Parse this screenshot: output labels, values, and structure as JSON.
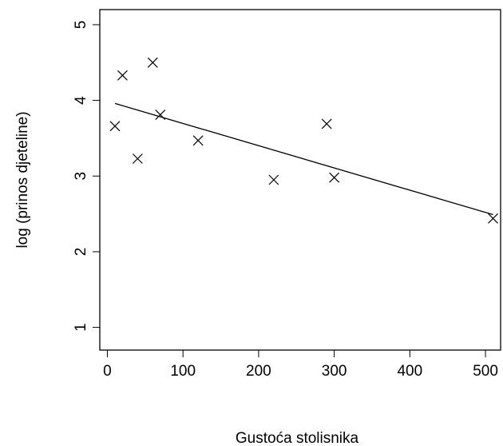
{
  "chart_data": {
    "type": "scatter",
    "title": "",
    "xlabel": "Gustoća stolisnika",
    "ylabel": "log (prinos djeteline)",
    "xlim": [
      -10,
      520
    ],
    "ylim": [
      0.7,
      5.2
    ],
    "xticks": [
      0,
      100,
      200,
      300,
      400,
      500
    ],
    "yticks": [
      1,
      2,
      3,
      4,
      5
    ],
    "grid": false,
    "legend": "none",
    "marker": "x",
    "points": [
      {
        "x": 10,
        "y": 3.66
      },
      {
        "x": 20,
        "y": 4.33
      },
      {
        "x": 40,
        "y": 3.23
      },
      {
        "x": 60,
        "y": 4.5
      },
      {
        "x": 70,
        "y": 3.81
      },
      {
        "x": 120,
        "y": 3.47
      },
      {
        "x": 220,
        "y": 2.95
      },
      {
        "x": 290,
        "y": 3.69
      },
      {
        "x": 300,
        "y": 2.98
      },
      {
        "x": 510,
        "y": 2.44
      }
    ],
    "fit_line": {
      "x": [
        10,
        510
      ],
      "y": [
        3.96,
        2.49
      ]
    },
    "colors": {
      "points": "#000000",
      "line": "#000000",
      "axes": "#000000"
    }
  }
}
